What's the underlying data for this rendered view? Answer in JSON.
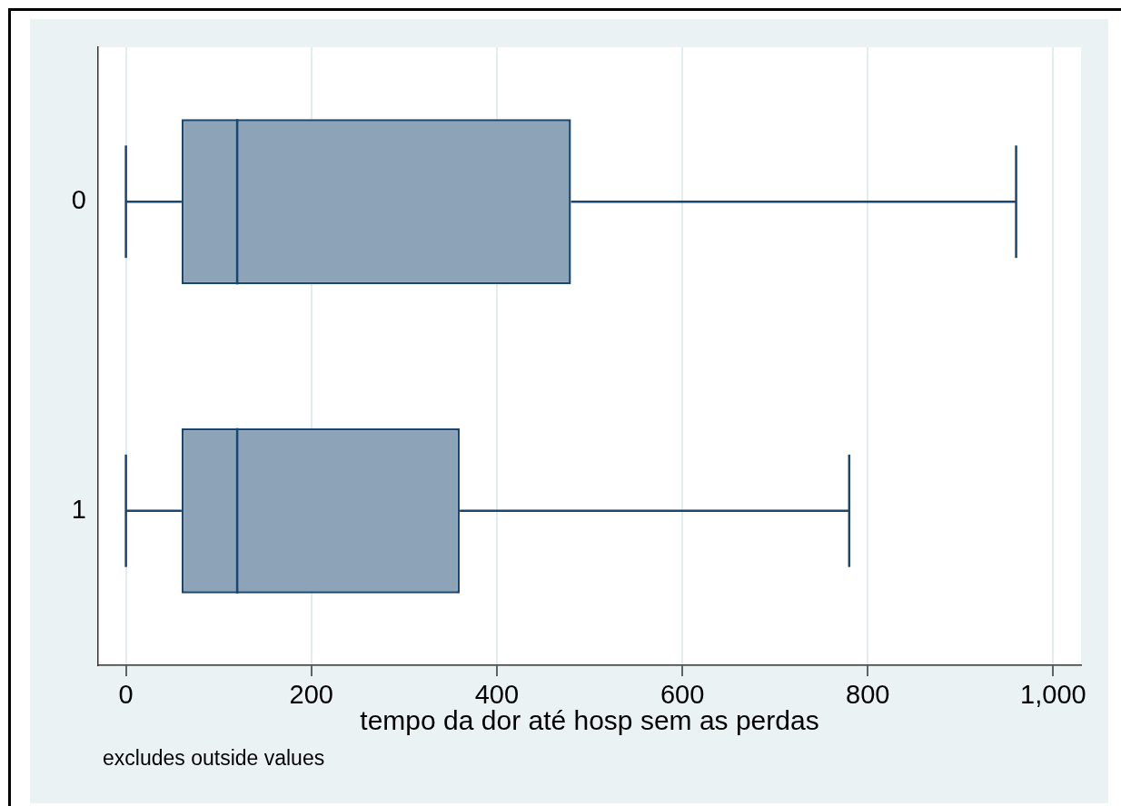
{
  "chart_data": {
    "type": "box",
    "orientation": "horizontal",
    "categories": [
      "0",
      "1"
    ],
    "boxes": [
      {
        "low": 0,
        "q1": 60,
        "median": 120,
        "q3": 480,
        "high": 960
      },
      {
        "low": 0,
        "q1": 60,
        "median": 120,
        "q3": 360,
        "high": 780
      }
    ],
    "color": "#1a476f",
    "xlabel": "tempo da dor até hosp sem as perdas",
    "xlim": [
      -30,
      1030
    ],
    "xticks": [
      0,
      200,
      400,
      600,
      800,
      {
        "value": 1000,
        "label": "1,000"
      }
    ],
    "grid": "x",
    "annotations": [
      "excludes outside values"
    ]
  }
}
